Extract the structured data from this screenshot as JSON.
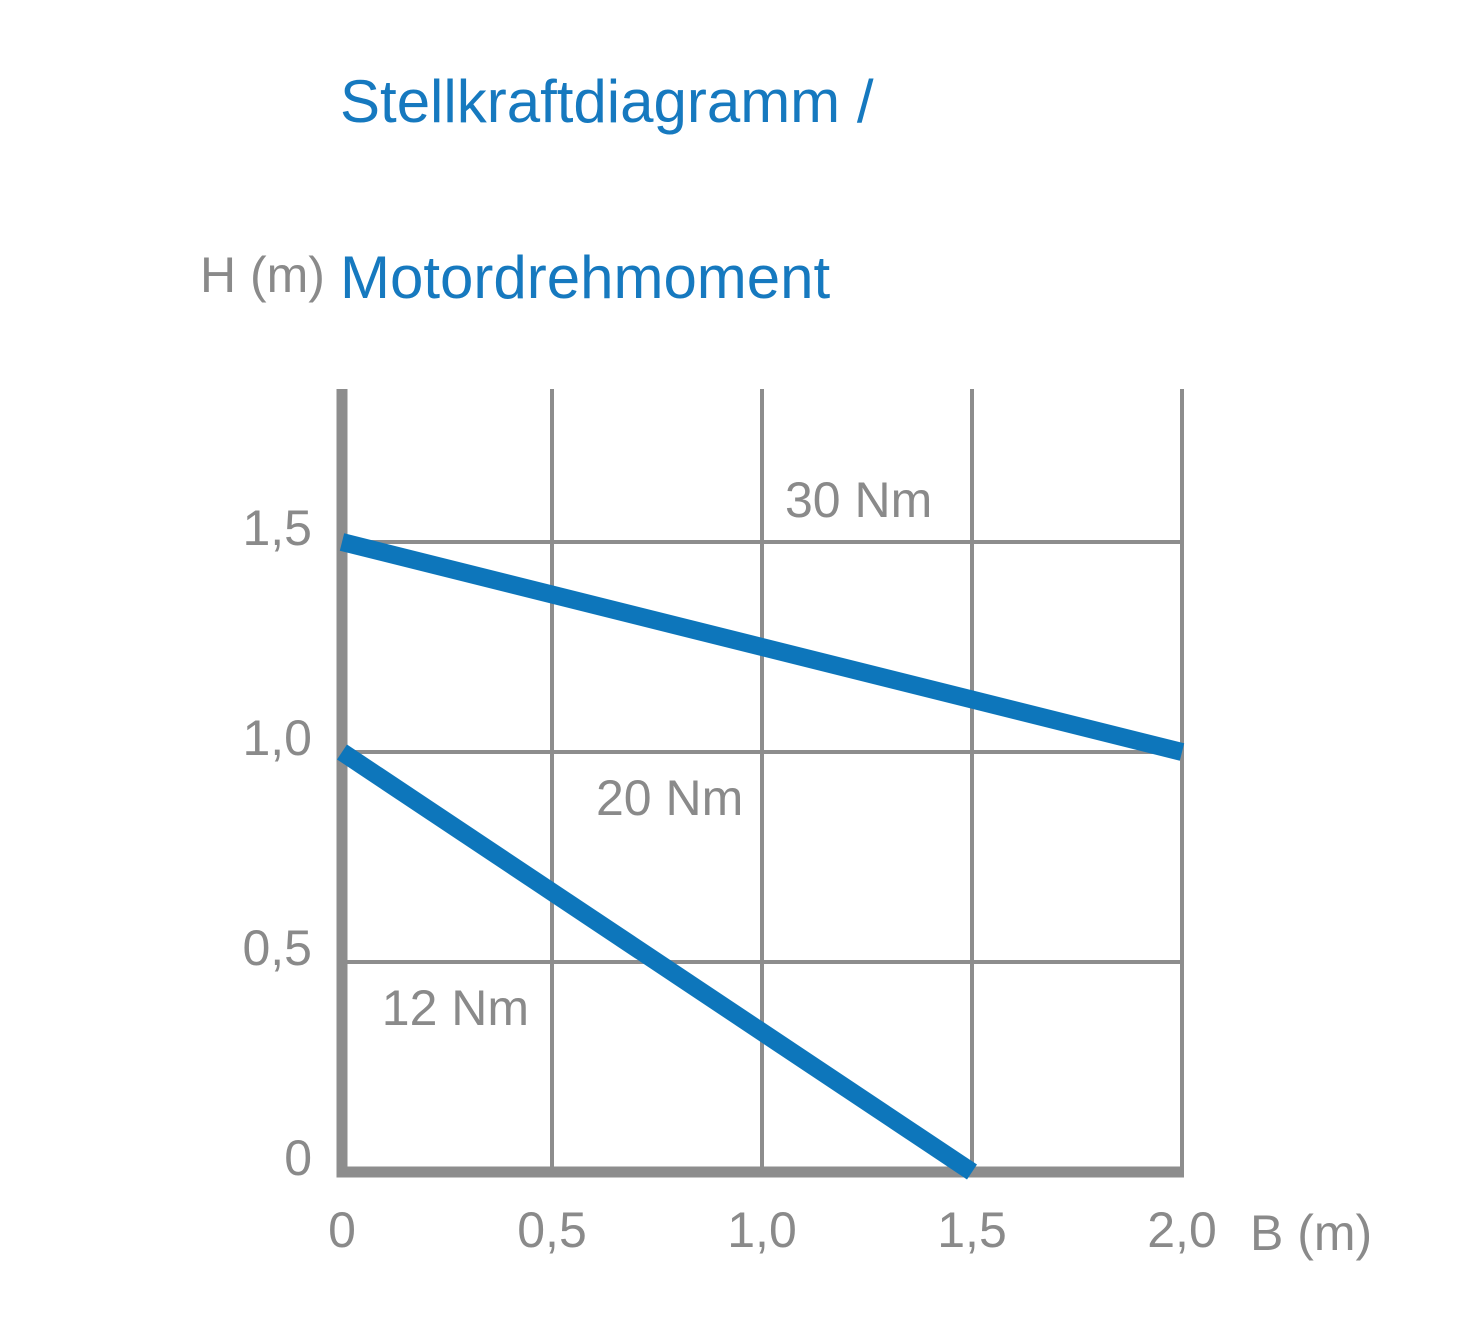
{
  "title": {
    "line1": "Stellkraftdiagramm /",
    "line2": "Motordrehmoment"
  },
  "colors": {
    "title_blue": "#1679bf",
    "line_blue": "#0d76bb",
    "axis_gray": "#8d8d8d",
    "text_gray": "#8a8a8a",
    "background": "#ffffff"
  },
  "chart_data": {
    "type": "line",
    "title": "Stellkraftdiagramm / Motordrehmoment",
    "xlabel": "B (m)",
    "ylabel": "H (m)",
    "xlim": [
      0,
      2.0
    ],
    "ylim": [
      0,
      1.86
    ],
    "grid": true,
    "x_ticks": [
      {
        "value": 0,
        "label": "0"
      },
      {
        "value": 0.5,
        "label": "0,5"
      },
      {
        "value": 1.0,
        "label": "1,0"
      },
      {
        "value": 1.5,
        "label": "1,5"
      },
      {
        "value": 2.0,
        "label": "2,0"
      }
    ],
    "y_ticks": [
      {
        "value": 0,
        "label": "0"
      },
      {
        "value": 0.5,
        "label": "0,5"
      },
      {
        "value": 1.0,
        "label": "1,0"
      },
      {
        "value": 1.5,
        "label": "1,5"
      }
    ],
    "series": [
      {
        "name": "30-nm-limit-line",
        "points": [
          [
            0,
            1.5
          ],
          [
            2.0,
            1.0
          ]
        ]
      },
      {
        "name": "20-nm-limit-line",
        "points": [
          [
            0,
            1.0
          ],
          [
            1.5,
            0
          ]
        ]
      }
    ],
    "annotations": [
      {
        "text": "30 Nm",
        "x": 1.23,
        "y": 1.6
      },
      {
        "text": "20 Nm",
        "x": 0.78,
        "y": 0.89
      },
      {
        "text": "12 Nm",
        "x": 0.27,
        "y": 0.39
      }
    ]
  }
}
